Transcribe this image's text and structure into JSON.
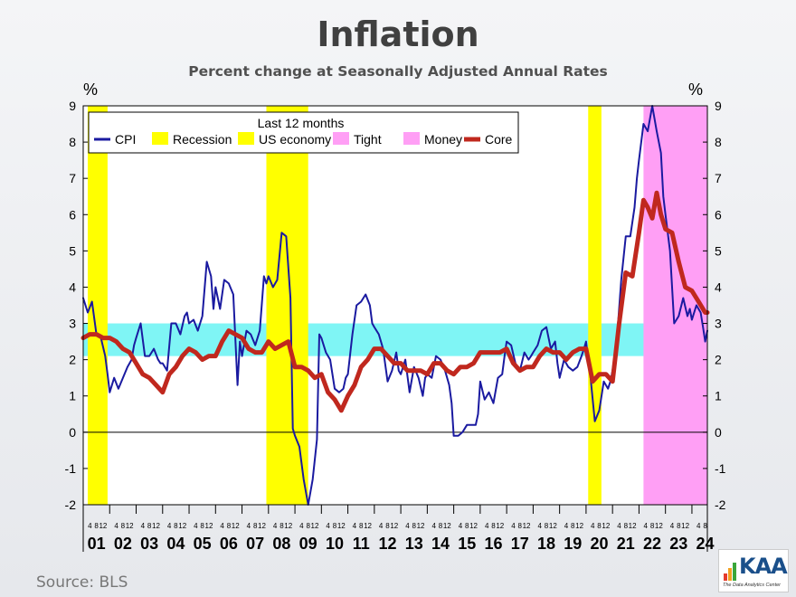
{
  "header": {
    "title": "Inflation",
    "subtitle": "Percent change at Seasonally Adjusted  Annual Rates"
  },
  "footer": {
    "source": "Source:  BLS"
  },
  "logo": {
    "text": "KAA",
    "tagline": "The Data Analytics Center"
  },
  "chart_data": {
    "type": "line",
    "y_unit_label": "%",
    "ylim": [
      -2,
      9
    ],
    "yticks": [
      -2,
      -1,
      0,
      1,
      2,
      3,
      4,
      5,
      6,
      7,
      8,
      9
    ],
    "x_start": 2001,
    "x_end": 2024.583,
    "year_labels": [
      "01",
      "02",
      "03",
      "04",
      "05",
      "06",
      "07",
      "08",
      "09",
      "10",
      "11",
      "12",
      "13",
      "14",
      "15",
      "16",
      "17",
      "18",
      "19",
      "20",
      "21",
      "22",
      "23",
      "24"
    ],
    "month_tick_labels": [
      "4",
      "8",
      "12"
    ],
    "legend": {
      "title": "Last 12 months",
      "items": [
        {
          "label": "CPI",
          "color": "#1a1aa0",
          "kind": "line"
        },
        {
          "label": "Recession",
          "color": "#ffff00",
          "kind": "box"
        },
        {
          "label": "US economy",
          "color": "#ffff00",
          "kind": "box"
        },
        {
          "label": "Tight",
          "color": "#ff9ff5",
          "kind": "box"
        },
        {
          "label": "Money",
          "color": "#ff9ff5",
          "kind": "box"
        },
        {
          "label": "Core",
          "color": "#c0281e",
          "kind": "line"
        }
      ]
    },
    "recessions": [
      {
        "start": 2001.17,
        "end": 2001.92
      },
      {
        "start": 2007.92,
        "end": 2009.5
      },
      {
        "start": 2020.08,
        "end": 2020.58
      }
    ],
    "tight_money": {
      "start": 2022.17,
      "end": 2024.75
    },
    "target_band": {
      "low": 2.1,
      "high": 3.0,
      "color": "#7ff5f5"
    },
    "series": [
      {
        "name": "CPI",
        "color": "#1a1aa0",
        "points": [
          [
            2001.0,
            3.7
          ],
          [
            2001.17,
            3.3
          ],
          [
            2001.33,
            3.6
          ],
          [
            2001.5,
            2.7
          ],
          [
            2001.67,
            2.6
          ],
          [
            2001.83,
            2.1
          ],
          [
            2001.92,
            1.6
          ],
          [
            2002.0,
            1.1
          ],
          [
            2002.17,
            1.5
          ],
          [
            2002.33,
            1.2
          ],
          [
            2002.5,
            1.5
          ],
          [
            2002.67,
            1.8
          ],
          [
            2002.83,
            2.0
          ],
          [
            2002.92,
            2.4
          ],
          [
            2003.0,
            2.6
          ],
          [
            2003.17,
            3.0
          ],
          [
            2003.33,
            2.1
          ],
          [
            2003.5,
            2.1
          ],
          [
            2003.67,
            2.3
          ],
          [
            2003.83,
            2.0
          ],
          [
            2003.92,
            1.9
          ],
          [
            2004.0,
            1.9
          ],
          [
            2004.17,
            1.7
          ],
          [
            2004.33,
            3.0
          ],
          [
            2004.5,
            3.0
          ],
          [
            2004.67,
            2.7
          ],
          [
            2004.83,
            3.2
          ],
          [
            2004.92,
            3.3
          ],
          [
            2005.0,
            3.0
          ],
          [
            2005.17,
            3.1
          ],
          [
            2005.33,
            2.8
          ],
          [
            2005.5,
            3.2
          ],
          [
            2005.67,
            4.7
          ],
          [
            2005.83,
            4.3
          ],
          [
            2005.92,
            3.4
          ],
          [
            2006.0,
            4.0
          ],
          [
            2006.17,
            3.4
          ],
          [
            2006.33,
            4.2
          ],
          [
            2006.5,
            4.1
          ],
          [
            2006.67,
            3.8
          ],
          [
            2006.83,
            1.3
          ],
          [
            2006.92,
            2.5
          ],
          [
            2007.0,
            2.1
          ],
          [
            2007.17,
            2.8
          ],
          [
            2007.33,
            2.7
          ],
          [
            2007.5,
            2.4
          ],
          [
            2007.67,
            2.8
          ],
          [
            2007.83,
            4.3
          ],
          [
            2007.92,
            4.1
          ],
          [
            2008.0,
            4.3
          ],
          [
            2008.17,
            4.0
          ],
          [
            2008.33,
            4.2
          ],
          [
            2008.5,
            5.5
          ],
          [
            2008.67,
            5.4
          ],
          [
            2008.83,
            3.7
          ],
          [
            2008.92,
            0.1
          ],
          [
            2009.0,
            -0.1
          ],
          [
            2009.17,
            -0.4
          ],
          [
            2009.33,
            -1.3
          ],
          [
            2009.5,
            -2.0
          ],
          [
            2009.67,
            -1.3
          ],
          [
            2009.83,
            -0.2
          ],
          [
            2009.92,
            2.7
          ],
          [
            2010.0,
            2.6
          ],
          [
            2010.17,
            2.2
          ],
          [
            2010.33,
            2.0
          ],
          [
            2010.5,
            1.2
          ],
          [
            2010.67,
            1.1
          ],
          [
            2010.83,
            1.2
          ],
          [
            2010.92,
            1.5
          ],
          [
            2011.0,
            1.6
          ],
          [
            2011.17,
            2.7
          ],
          [
            2011.33,
            3.5
          ],
          [
            2011.5,
            3.6
          ],
          [
            2011.67,
            3.8
          ],
          [
            2011.83,
            3.5
          ],
          [
            2011.92,
            3.0
          ],
          [
            2012.0,
            2.9
          ],
          [
            2012.17,
            2.7
          ],
          [
            2012.33,
            2.3
          ],
          [
            2012.5,
            1.4
          ],
          [
            2012.67,
            1.7
          ],
          [
            2012.83,
            2.2
          ],
          [
            2012.92,
            1.7
          ],
          [
            2013.0,
            1.6
          ],
          [
            2013.17,
            2.0
          ],
          [
            2013.33,
            1.1
          ],
          [
            2013.5,
            1.8
          ],
          [
            2013.67,
            1.5
          ],
          [
            2013.83,
            1.0
          ],
          [
            2013.92,
            1.5
          ],
          [
            2014.0,
            1.6
          ],
          [
            2014.17,
            1.5
          ],
          [
            2014.33,
            2.1
          ],
          [
            2014.5,
            2.0
          ],
          [
            2014.67,
            1.7
          ],
          [
            2014.83,
            1.3
          ],
          [
            2014.92,
            0.8
          ],
          [
            2015.0,
            -0.1
          ],
          [
            2015.17,
            -0.1
          ],
          [
            2015.33,
            0.0
          ],
          [
            2015.5,
            0.2
          ],
          [
            2015.67,
            0.2
          ],
          [
            2015.83,
            0.2
          ],
          [
            2015.92,
            0.5
          ],
          [
            2016.0,
            1.4
          ],
          [
            2016.17,
            0.9
          ],
          [
            2016.33,
            1.1
          ],
          [
            2016.5,
            0.8
          ],
          [
            2016.67,
            1.5
          ],
          [
            2016.83,
            1.6
          ],
          [
            2016.92,
            2.1
          ],
          [
            2017.0,
            2.5
          ],
          [
            2017.17,
            2.4
          ],
          [
            2017.33,
            1.9
          ],
          [
            2017.5,
            1.7
          ],
          [
            2017.67,
            2.2
          ],
          [
            2017.83,
            2.0
          ],
          [
            2017.92,
            2.1
          ],
          [
            2018.0,
            2.2
          ],
          [
            2018.17,
            2.4
          ],
          [
            2018.33,
            2.8
          ],
          [
            2018.5,
            2.9
          ],
          [
            2018.67,
            2.3
          ],
          [
            2018.83,
            2.5
          ],
          [
            2018.92,
            1.9
          ],
          [
            2019.0,
            1.5
          ],
          [
            2019.17,
            2.0
          ],
          [
            2019.33,
            1.8
          ],
          [
            2019.5,
            1.7
          ],
          [
            2019.67,
            1.8
          ],
          [
            2019.83,
            2.1
          ],
          [
            2019.92,
            2.3
          ],
          [
            2020.0,
            2.5
          ],
          [
            2020.17,
            1.5
          ],
          [
            2020.33,
            0.3
          ],
          [
            2020.5,
            0.6
          ],
          [
            2020.67,
            1.4
          ],
          [
            2020.83,
            1.2
          ],
          [
            2020.92,
            1.4
          ],
          [
            2021.0,
            1.7
          ],
          [
            2021.17,
            2.6
          ],
          [
            2021.33,
            4.2
          ],
          [
            2021.5,
            5.4
          ],
          [
            2021.67,
            5.4
          ],
          [
            2021.83,
            6.2
          ],
          [
            2021.92,
            7.0
          ],
          [
            2022.0,
            7.5
          ],
          [
            2022.17,
            8.5
          ],
          [
            2022.33,
            8.3
          ],
          [
            2022.5,
            9.0
          ],
          [
            2022.67,
            8.3
          ],
          [
            2022.83,
            7.7
          ],
          [
            2022.92,
            6.5
          ],
          [
            2023.0,
            6.0
          ],
          [
            2023.17,
            5.0
          ],
          [
            2023.33,
            3.0
          ],
          [
            2023.5,
            3.2
          ],
          [
            2023.67,
            3.7
          ],
          [
            2023.83,
            3.2
          ],
          [
            2023.92,
            3.4
          ],
          [
            2024.0,
            3.1
          ],
          [
            2024.17,
            3.5
          ],
          [
            2024.33,
            3.3
          ],
          [
            2024.42,
            2.9
          ],
          [
            2024.5,
            2.5
          ],
          [
            2024.583,
            2.8
          ]
        ]
      },
      {
        "name": "Core",
        "color": "#c0281e",
        "points": [
          [
            2001.0,
            2.6
          ],
          [
            2001.25,
            2.7
          ],
          [
            2001.5,
            2.7
          ],
          [
            2001.75,
            2.6
          ],
          [
            2002.0,
            2.6
          ],
          [
            2002.25,
            2.5
          ],
          [
            2002.5,
            2.3
          ],
          [
            2002.75,
            2.2
          ],
          [
            2003.0,
            1.9
          ],
          [
            2003.25,
            1.6
          ],
          [
            2003.5,
            1.5
          ],
          [
            2003.75,
            1.3
          ],
          [
            2004.0,
            1.1
          ],
          [
            2004.25,
            1.6
          ],
          [
            2004.5,
            1.8
          ],
          [
            2004.75,
            2.1
          ],
          [
            2005.0,
            2.3
          ],
          [
            2005.25,
            2.2
          ],
          [
            2005.5,
            2.0
          ],
          [
            2005.75,
            2.1
          ],
          [
            2006.0,
            2.1
          ],
          [
            2006.25,
            2.5
          ],
          [
            2006.5,
            2.8
          ],
          [
            2006.75,
            2.7
          ],
          [
            2007.0,
            2.6
          ],
          [
            2007.25,
            2.3
          ],
          [
            2007.5,
            2.2
          ],
          [
            2007.75,
            2.2
          ],
          [
            2008.0,
            2.5
          ],
          [
            2008.25,
            2.3
          ],
          [
            2008.5,
            2.4
          ],
          [
            2008.75,
            2.5
          ],
          [
            2009.0,
            1.8
          ],
          [
            2009.25,
            1.8
          ],
          [
            2009.5,
            1.7
          ],
          [
            2009.75,
            1.5
          ],
          [
            2010.0,
            1.6
          ],
          [
            2010.25,
            1.1
          ],
          [
            2010.5,
            0.9
          ],
          [
            2010.75,
            0.6
          ],
          [
            2011.0,
            1.0
          ],
          [
            2011.25,
            1.3
          ],
          [
            2011.5,
            1.8
          ],
          [
            2011.75,
            2.0
          ],
          [
            2012.0,
            2.3
          ],
          [
            2012.25,
            2.3
          ],
          [
            2012.5,
            2.1
          ],
          [
            2012.75,
            1.9
          ],
          [
            2013.0,
            1.9
          ],
          [
            2013.25,
            1.7
          ],
          [
            2013.5,
            1.7
          ],
          [
            2013.75,
            1.7
          ],
          [
            2014.0,
            1.6
          ],
          [
            2014.25,
            1.9
          ],
          [
            2014.5,
            1.9
          ],
          [
            2014.75,
            1.7
          ],
          [
            2015.0,
            1.6
          ],
          [
            2015.25,
            1.8
          ],
          [
            2015.5,
            1.8
          ],
          [
            2015.75,
            1.9
          ],
          [
            2016.0,
            2.2
          ],
          [
            2016.25,
            2.2
          ],
          [
            2016.5,
            2.2
          ],
          [
            2016.75,
            2.2
          ],
          [
            2017.0,
            2.3
          ],
          [
            2017.25,
            1.9
          ],
          [
            2017.5,
            1.7
          ],
          [
            2017.75,
            1.8
          ],
          [
            2018.0,
            1.8
          ],
          [
            2018.25,
            2.1
          ],
          [
            2018.5,
            2.3
          ],
          [
            2018.75,
            2.2
          ],
          [
            2019.0,
            2.2
          ],
          [
            2019.25,
            2.0
          ],
          [
            2019.5,
            2.2
          ],
          [
            2019.75,
            2.3
          ],
          [
            2020.0,
            2.3
          ],
          [
            2020.25,
            1.4
          ],
          [
            2020.5,
            1.6
          ],
          [
            2020.75,
            1.6
          ],
          [
            2021.0,
            1.4
          ],
          [
            2021.25,
            3.0
          ],
          [
            2021.5,
            4.4
          ],
          [
            2021.75,
            4.3
          ],
          [
            2022.0,
            5.5
          ],
          [
            2022.17,
            6.4
          ],
          [
            2022.33,
            6.2
          ],
          [
            2022.5,
            5.9
          ],
          [
            2022.67,
            6.6
          ],
          [
            2022.83,
            6.0
          ],
          [
            2023.0,
            5.6
          ],
          [
            2023.25,
            5.5
          ],
          [
            2023.5,
            4.7
          ],
          [
            2023.75,
            4.0
          ],
          [
            2024.0,
            3.9
          ],
          [
            2024.25,
            3.6
          ],
          [
            2024.5,
            3.3
          ],
          [
            2024.583,
            3.3
          ]
        ]
      }
    ]
  }
}
